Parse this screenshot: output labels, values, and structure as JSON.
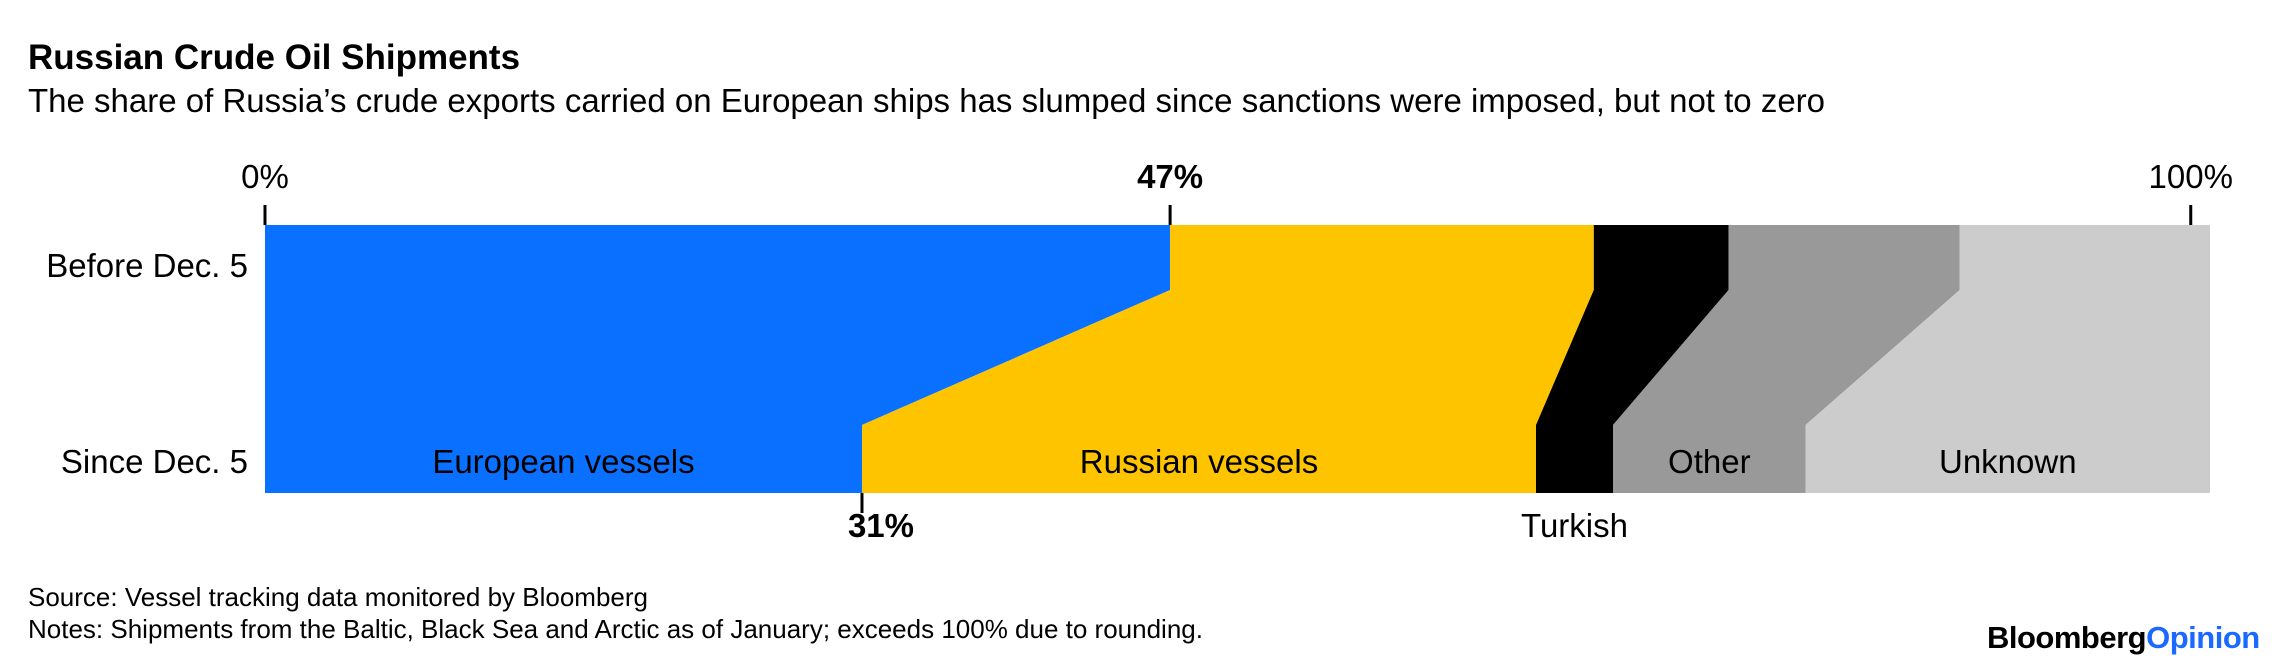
{
  "title": "Russian Crude Oil Shipments",
  "subtitle": "The share of Russia’s crude exports carried on European ships has slumped since sanctions were imposed, but not to zero",
  "source": "Source: Vessel tracking data monitored by Bloomberg",
  "notes": "Notes: Shipments from the Baltic, Black Sea and Arctic as of January; exceeds 100% due to rounding.",
  "logo": {
    "brand": "Bloomberg",
    "accent": "Opinion"
  },
  "chart_data": {
    "type": "bar",
    "stacked": true,
    "unit": "%",
    "categories": [
      "Before Dec. 5",
      "Since Dec. 5"
    ],
    "series": [
      {
        "name": "European vessels",
        "values": [
          47,
          31
        ],
        "color": "#0a70ff",
        "label_row": 1
      },
      {
        "name": "Russian vessels",
        "values": [
          22,
          35
        ],
        "color": "#ffc400",
        "label_row": 1
      },
      {
        "name": "Turkish",
        "values": [
          7,
          4
        ],
        "color": "#000000",
        "label_row": "below"
      },
      {
        "name": "Other",
        "values": [
          12,
          10
        ],
        "color": "#999999",
        "label_row": 1
      },
      {
        "name": "Unknown",
        "values": [
          13,
          21
        ],
        "color": "#cccccc",
        "label_row": 1
      }
    ],
    "top_ticks": [
      {
        "value": 0,
        "label": "0%",
        "bold": false
      },
      {
        "value": 47,
        "label": "47%",
        "bold": true
      },
      {
        "value": 100,
        "label": "100%",
        "bold": false
      }
    ],
    "bottom_ticks": [
      {
        "value": 31,
        "label": "31%",
        "bold": true
      }
    ],
    "xlim": [
      0,
      101
    ]
  }
}
